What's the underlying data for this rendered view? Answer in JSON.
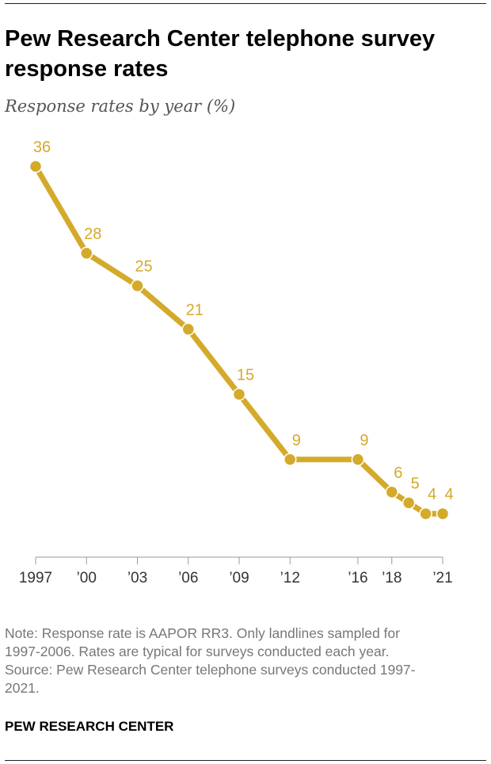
{
  "chart_data": {
    "type": "line",
    "title": "Pew Research Center telephone survey response rates",
    "subtitle": "Response rates by year (%)",
    "x": [
      1997,
      2000,
      2003,
      2006,
      2009,
      2012,
      2016,
      2018,
      2019,
      2020,
      2021
    ],
    "point_labels": [
      "36",
      "28",
      "25",
      "21",
      "15",
      "9",
      "9",
      "6",
      "5",
      "4",
      "4"
    ],
    "series": [
      {
        "values": [
          36,
          28,
          25,
          21,
          15,
          9,
          9,
          6,
          5,
          4,
          4
        ]
      }
    ],
    "x_ticks": [
      {
        "value": 1997,
        "label": "1997"
      },
      {
        "value": 2000,
        "label": "’00"
      },
      {
        "value": 2003,
        "label": "’03"
      },
      {
        "value": 2006,
        "label": "’06"
      },
      {
        "value": 2009,
        "label": "’09"
      },
      {
        "value": 2012,
        "label": "’12"
      },
      {
        "value": 2016,
        "label": "’16"
      },
      {
        "value": 2018,
        "label": "’18"
      },
      {
        "value": 2021,
        "label": "’21"
      }
    ],
    "xlim": [
      1997,
      2021
    ],
    "ylim": [
      0,
      36
    ],
    "xlabel": "",
    "ylabel": "",
    "grid": false,
    "legend": "none",
    "color": "#d4aa2b"
  },
  "footer": {
    "note_lines": [
      "Note: Response rate is AAPOR RR3. Only landlines sampled for",
      "1997-2006. Rates are typical for surveys conducted each year.",
      "Source: Pew Research Center telephone surveys conducted 1997-",
      "2021."
    ],
    "brand": "PEW RESEARCH CENTER"
  }
}
